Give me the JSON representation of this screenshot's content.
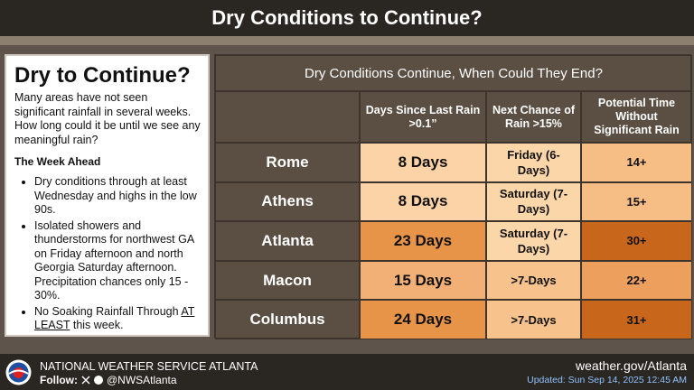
{
  "header": {
    "title": "Dry Conditions to Continue?"
  },
  "left_panel": {
    "title": "Dry to Continue?",
    "intro": "Many areas have not seen significant rainfall in several weeks. How long could it be until we see any meaningful rain?",
    "subtitle": "The Week Ahead",
    "bullets": [
      "Dry conditions through at least Wednesday and highs in the low 90s.",
      "Isolated showers and thunderstorms for northwest GA on Friday afternoon and north Georgia Saturday afternoon. Precipitation chances only 15 - 30%.",
      [
        "No Soaking Rainfall Through",
        "AT LEAST",
        "this week."
      ]
    ]
  },
  "table": {
    "title": "Dry Conditions Continue, When Could They End?",
    "headers": [
      "Days Since Last Rain >0.1”",
      "Next Chance of Rain >15%",
      "Potential Time Without Significant Rain"
    ],
    "rows": [
      [
        "Rome",
        "8 Days",
        "Friday (6-Days)",
        "14+"
      ],
      [
        "Athens",
        "8 Days",
        "Saturday (7-Days)",
        "15+"
      ],
      [
        "Atlanta",
        "23 Days",
        "Saturday (7-Days)",
        "30+"
      ],
      [
        "Macon",
        "15 Days",
        ">7-Days",
        "22+"
      ],
      [
        "Columbus",
        "24 Days",
        ">7-Days",
        "31+"
      ]
    ]
  },
  "footer": {
    "org": "NATIONAL WEATHER SERVICE ATLANTA",
    "follow": "Follow:",
    "handle": "@NWSAtlanta",
    "website": "weather.gov/Atlanta",
    "updated": "Updated: Sun Sep 14, 2025 12:45 AM"
  }
}
